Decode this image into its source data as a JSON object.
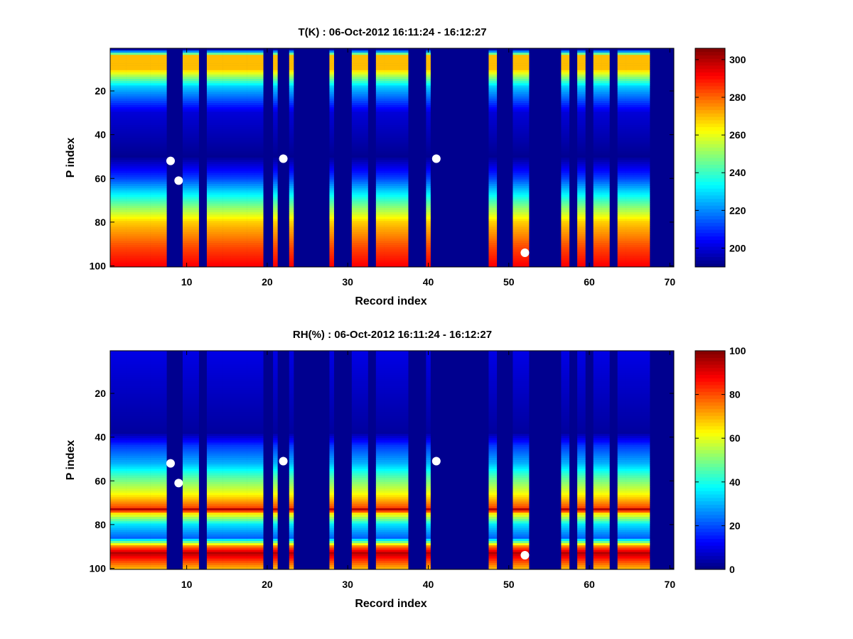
{
  "chart_data": [
    {
      "type": "heatmap",
      "title": "T(K) : 06-Oct-2012 16:11:24 - 16:12:27",
      "xlabel": "Record index",
      "ylabel": "P index",
      "xlim": [
        1,
        70
      ],
      "ylim": [
        1,
        100
      ],
      "y_reversed": true,
      "xticks": [
        10,
        20,
        30,
        40,
        50,
        60,
        70
      ],
      "yticks": [
        20,
        40,
        60,
        80,
        100
      ],
      "colorbar": {
        "min": 190,
        "max": 306,
        "ticks": [
          200,
          220,
          240,
          260,
          280,
          300
        ]
      },
      "fill_color": "#00008f",
      "gap_records": [
        8,
        9,
        12,
        20,
        22,
        24,
        25,
        26,
        27,
        29,
        30,
        33,
        38,
        39,
        41,
        42,
        43,
        44,
        45,
        46,
        47,
        49,
        50,
        53,
        54,
        55,
        56,
        58,
        60,
        63,
        68,
        69,
        70
      ],
      "narrow_records": [
        21,
        23,
        28,
        40
      ],
      "profile": [
        [
          1,
          195
        ],
        [
          4,
          270
        ],
        [
          10,
          270
        ],
        [
          18,
          228
        ],
        [
          30,
          200
        ],
        [
          50,
          192
        ],
        [
          60,
          212
        ],
        [
          70,
          240
        ],
        [
          80,
          268
        ],
        [
          92,
          284
        ],
        [
          100,
          292
        ]
      ],
      "white_markers": [
        [
          8,
          52
        ],
        [
          9,
          61
        ],
        [
          22,
          51
        ],
        [
          41,
          51
        ],
        [
          52,
          94
        ]
      ]
    },
    {
      "type": "heatmap",
      "title": "RH(%) : 06-Oct-2012 16:11:24 - 16:12:27",
      "xlabel": "Record index",
      "ylabel": "P index",
      "xlim": [
        1,
        70
      ],
      "ylim": [
        1,
        100
      ],
      "y_reversed": true,
      "xticks": [
        10,
        20,
        30,
        40,
        50,
        60,
        70
      ],
      "yticks": [
        20,
        40,
        60,
        80,
        100
      ],
      "colorbar": {
        "min": 0,
        "max": 100,
        "ticks": [
          0,
          20,
          40,
          60,
          80,
          100
        ]
      },
      "fill_color": "#00008f",
      "gap_records": [
        8,
        9,
        12,
        20,
        22,
        24,
        25,
        26,
        27,
        29,
        30,
        33,
        38,
        39,
        41,
        42,
        43,
        44,
        45,
        46,
        47,
        49,
        50,
        53,
        54,
        55,
        56,
        58,
        60,
        63,
        68,
        69,
        70
      ],
      "narrow_records": [
        21,
        23,
        28,
        40
      ],
      "profile": [
        [
          1,
          10
        ],
        [
          38,
          3
        ],
        [
          44,
          18
        ],
        [
          52,
          30
        ],
        [
          58,
          45
        ],
        [
          66,
          62
        ],
        [
          72,
          80
        ],
        [
          73,
          95
        ],
        [
          75,
          65
        ],
        [
          80,
          35
        ],
        [
          86,
          22
        ],
        [
          90,
          75
        ],
        [
          93,
          95
        ],
        [
          97,
          80
        ],
        [
          100,
          70
        ]
      ],
      "white_markers": [
        [
          8,
          52
        ],
        [
          9,
          61
        ],
        [
          22,
          51
        ],
        [
          41,
          51
        ],
        [
          52,
          94
        ]
      ]
    }
  ]
}
